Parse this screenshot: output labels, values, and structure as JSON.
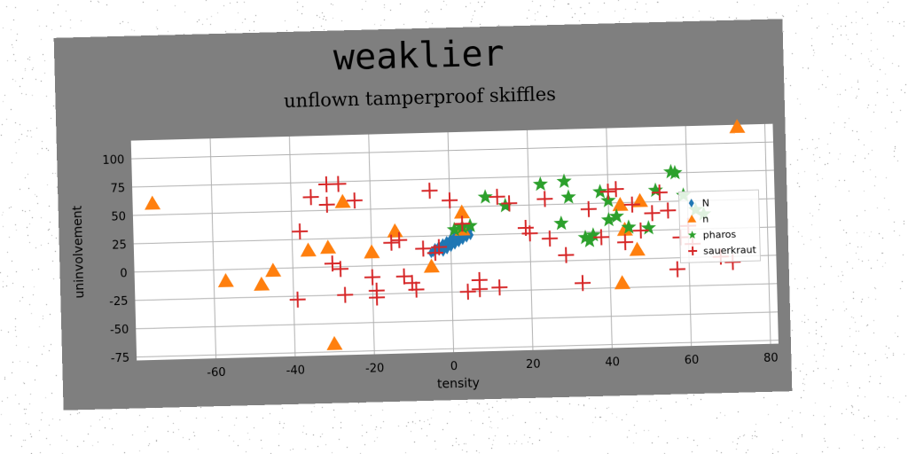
{
  "suptitle": "weaklier",
  "chart_data": {
    "type": "scatter",
    "title": "unflown tamperproof skiffles",
    "xlabel": "tensity",
    "ylabel": "uninvolvement",
    "xlim": [
      -80,
      82
    ],
    "ylim": [
      -78,
      116
    ],
    "xticks": [
      -60,
      -40,
      -20,
      0,
      20,
      40,
      60,
      80
    ],
    "yticks": [
      -75,
      -50,
      -25,
      0,
      25,
      50,
      75,
      100
    ],
    "grid": true,
    "legend_position": "right",
    "series": [
      {
        "name": "N",
        "marker": "diamond",
        "color": "#1f77b4",
        "points": [
          [
            -5,
            10
          ],
          [
            -4.5,
            11
          ],
          [
            -4,
            12
          ],
          [
            -3.5,
            13
          ],
          [
            -3,
            14
          ],
          [
            -2.5,
            15
          ],
          [
            -2,
            16
          ],
          [
            -1.5,
            17
          ],
          [
            -1,
            18
          ],
          [
            -0.5,
            19
          ],
          [
            0,
            20
          ],
          [
            0.5,
            21
          ],
          [
            1,
            22
          ],
          [
            1.5,
            23
          ],
          [
            2,
            24
          ],
          [
            2.5,
            25
          ],
          [
            3,
            26
          ],
          [
            3.5,
            27
          ],
          [
            4,
            28
          ],
          [
            4.5,
            29
          ],
          [
            5,
            30
          ],
          [
            -3,
            12
          ],
          [
            -2,
            14
          ],
          [
            -1,
            16
          ],
          [
            0,
            18
          ],
          [
            1,
            20
          ],
          [
            2,
            22
          ],
          [
            3,
            24
          ],
          [
            4,
            26
          ],
          [
            -4,
            14
          ],
          [
            -3,
            16
          ],
          [
            -2,
            18
          ],
          [
            -1,
            20
          ],
          [
            0,
            22
          ],
          [
            1,
            24
          ],
          [
            2,
            26
          ],
          [
            3,
            28
          ],
          [
            -2,
            11
          ],
          [
            -1,
            13
          ],
          [
            0,
            15
          ],
          [
            1,
            17
          ],
          [
            2,
            19
          ],
          [
            3,
            21
          ],
          [
            4,
            23
          ],
          [
            5,
            25
          ]
        ]
      },
      {
        "name": "n",
        "marker": "triangle",
        "color": "#ff7f0e",
        "points": [
          [
            -75,
            60
          ],
          [
            -57,
            -10
          ],
          [
            -48,
            -14
          ],
          [
            -45,
            -2
          ],
          [
            -36,
            15
          ],
          [
            -31,
            17
          ],
          [
            -30,
            -68
          ],
          [
            -27,
            57
          ],
          [
            -20,
            12
          ],
          [
            -14,
            30
          ],
          [
            -5,
            -2
          ],
          [
            3,
            45
          ],
          [
            3,
            30
          ],
          [
            43,
            48
          ],
          [
            44,
            26
          ],
          [
            47,
            8
          ],
          [
            48,
            51
          ],
          [
            43,
            -21
          ],
          [
            73,
            114
          ]
        ]
      },
      {
        "name": "pharos",
        "marker": "star",
        "color": "#2ca02c",
        "points": [
          [
            1,
            30
          ],
          [
            3,
            32
          ],
          [
            5,
            33
          ],
          [
            9,
            58
          ],
          [
            14,
            50
          ],
          [
            23,
            68
          ],
          [
            29,
            70
          ],
          [
            30,
            56
          ],
          [
            28,
            33
          ],
          [
            34,
            20
          ],
          [
            35,
            17
          ],
          [
            36,
            22
          ],
          [
            38,
            60
          ],
          [
            40,
            52
          ],
          [
            40,
            35
          ],
          [
            42,
            38
          ],
          [
            45,
            28
          ],
          [
            50,
            27
          ],
          [
            52,
            60
          ],
          [
            56,
            76
          ],
          [
            57,
            75
          ],
          [
            59,
            55
          ],
          [
            62,
            42
          ],
          [
            64,
            38
          ]
        ]
      },
      {
        "name": "sauerkraut",
        "marker": "plus",
        "color": "#d62728",
        "points": [
          [
            -39,
            -28
          ],
          [
            -38,
            32
          ],
          [
            -35,
            62
          ],
          [
            -31,
            55
          ],
          [
            -31,
            73
          ],
          [
            -28,
            73
          ],
          [
            -30,
            3
          ],
          [
            -28,
            -2
          ],
          [
            -27,
            -25
          ],
          [
            -24,
            58
          ],
          [
            -20,
            -10
          ],
          [
            -19,
            -22
          ],
          [
            -19,
            -28
          ],
          [
            -15,
            20
          ],
          [
            -13,
            22
          ],
          [
            -12,
            -10
          ],
          [
            -10,
            -16
          ],
          [
            -9,
            -22
          ],
          [
            -7,
            14
          ],
          [
            -5,
            65
          ],
          [
            -4,
            10
          ],
          [
            -3,
            15
          ],
          [
            0,
            56
          ],
          [
            3,
            35
          ],
          [
            4,
            -25
          ],
          [
            7,
            -15
          ],
          [
            7,
            -23
          ],
          [
            12,
            -22
          ],
          [
            12,
            58
          ],
          [
            15,
            52
          ],
          [
            19,
            30
          ],
          [
            20,
            25
          ],
          [
            24,
            55
          ],
          [
            25,
            20
          ],
          [
            29,
            5
          ],
          [
            33,
            -20
          ],
          [
            35,
            45
          ],
          [
            38,
            20
          ],
          [
            40,
            60
          ],
          [
            42,
            62
          ],
          [
            44,
            15
          ],
          [
            46,
            48
          ],
          [
            48,
            25
          ],
          [
            51,
            40
          ],
          [
            53,
            58
          ],
          [
            55,
            42
          ],
          [
            57,
            -10
          ],
          [
            58,
            18
          ],
          [
            60,
            28
          ],
          [
            61,
            12
          ],
          [
            68,
            0
          ],
          [
            71,
            -5
          ]
        ]
      }
    ]
  }
}
